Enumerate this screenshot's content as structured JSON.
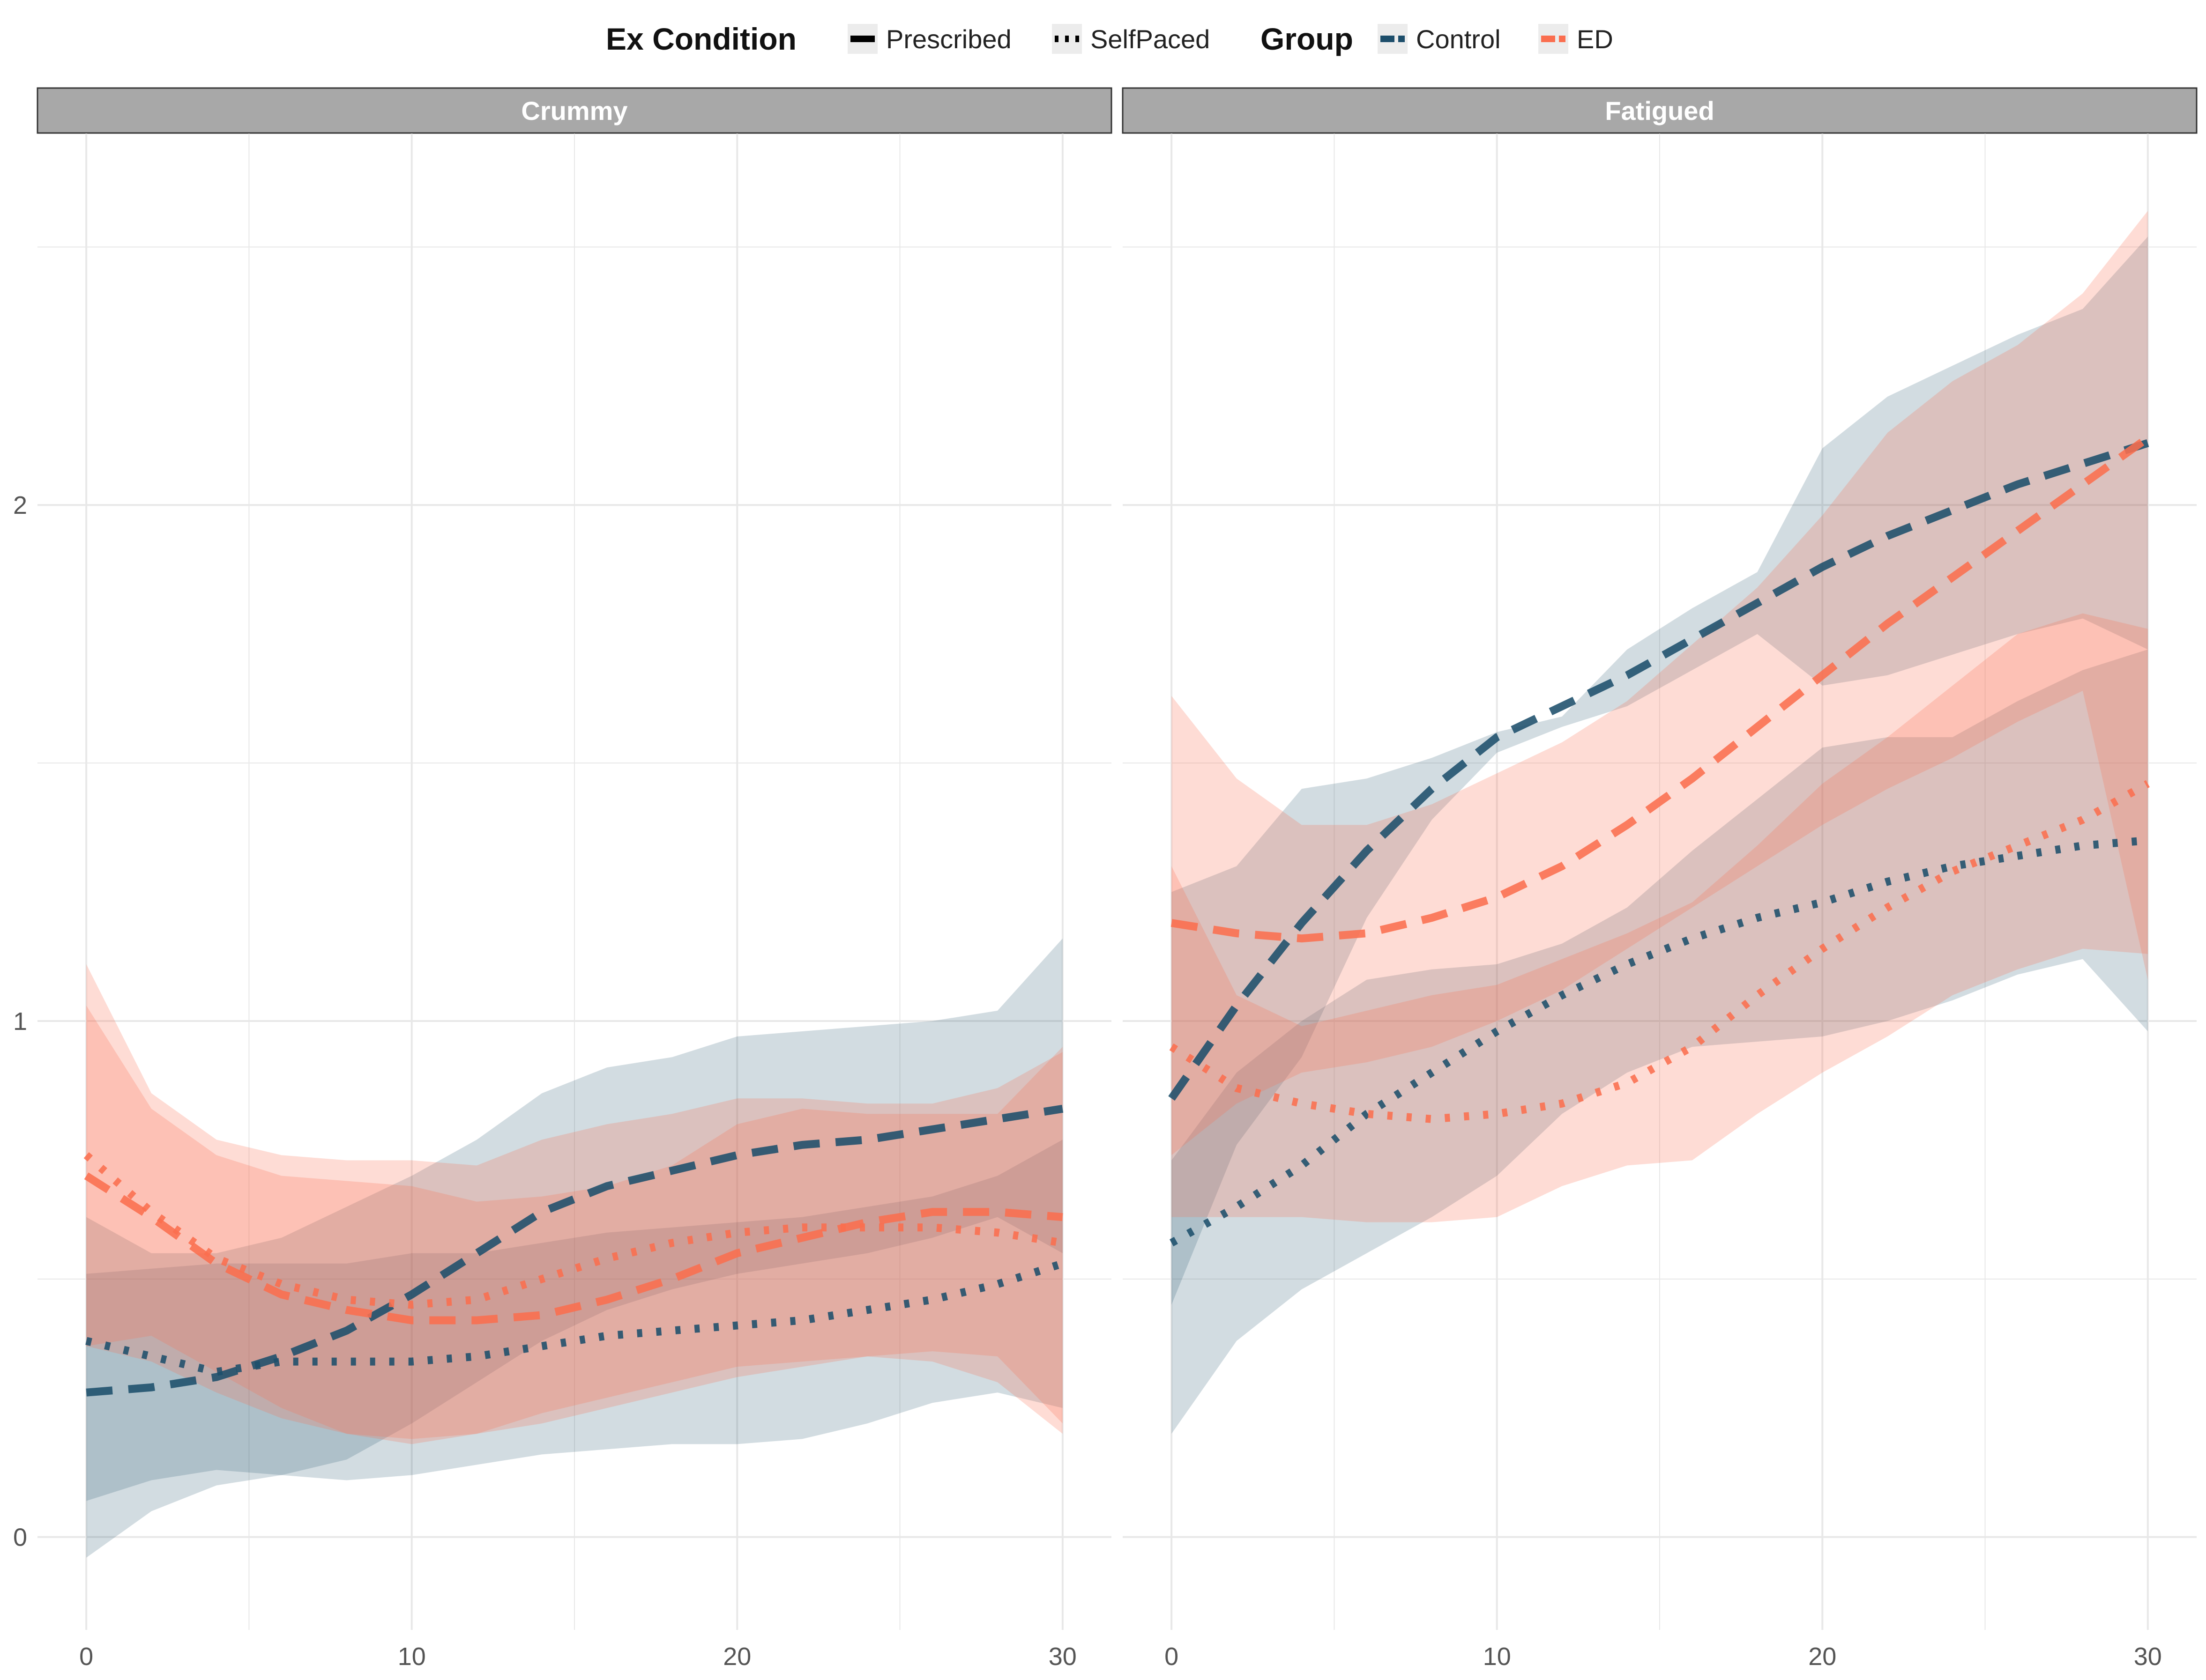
{
  "chart_data": {
    "type": "line",
    "legend": {
      "position": "top",
      "groups": [
        {
          "title": "Ex Condition",
          "key": "linetype",
          "entries": [
            {
              "label": "Prescribed",
              "dash": "solid"
            },
            {
              "label": "SelfPaced",
              "dash": "dotted"
            }
          ]
        },
        {
          "title": "Group",
          "key": "color",
          "entries": [
            {
              "label": "Control",
              "color": "#1d4e6b"
            },
            {
              "label": "ED",
              "color": "#fa6e4f"
            }
          ]
        }
      ]
    },
    "colors": {
      "Control": "#1d4e6b",
      "ED": "#fa6e4f",
      "strip": "#a8a8a8",
      "grid": "#e8e8e8"
    },
    "xlim": [
      -1.5,
      31.5
    ],
    "ylim": [
      -0.18,
      2.72
    ],
    "xticks": [
      0,
      10,
      20,
      30
    ],
    "yticks": [
      0,
      1,
      2
    ],
    "grid": true,
    "facets": [
      {
        "name": "Crummy",
        "series": [
          {
            "group": "Control",
            "condition": "Prescribed",
            "x": [
              0,
              2,
              4,
              6,
              8,
              10,
              12,
              14,
              16,
              18,
              20,
              22,
              24,
              26,
              28,
              30
            ],
            "y": [
              0.28,
              0.29,
              0.31,
              0.35,
              0.4,
              0.47,
              0.55,
              0.63,
              0.68,
              0.71,
              0.74,
              0.76,
              0.77,
              0.79,
              0.81,
              0.83
            ],
            "upper": [
              0.62,
              0.55,
              0.55,
              0.58,
              0.64,
              0.7,
              0.77,
              0.86,
              0.91,
              0.93,
              0.97,
              0.98,
              0.99,
              1.0,
              1.02,
              1.16
            ],
            "lower": [
              -0.04,
              0.05,
              0.1,
              0.12,
              0.15,
              0.22,
              0.3,
              0.38,
              0.44,
              0.48,
              0.51,
              0.53,
              0.55,
              0.58,
              0.62,
              0.55
            ]
          },
          {
            "group": "Control",
            "condition": "SelfPaced",
            "x": [
              0,
              2,
              4,
              6,
              8,
              10,
              12,
              14,
              16,
              18,
              20,
              22,
              24,
              26,
              28,
              30
            ],
            "y": [
              0.38,
              0.35,
              0.32,
              0.34,
              0.34,
              0.34,
              0.35,
              0.37,
              0.39,
              0.4,
              0.41,
              0.42,
              0.44,
              0.46,
              0.49,
              0.53
            ],
            "upper": [
              0.51,
              0.52,
              0.53,
              0.53,
              0.53,
              0.55,
              0.55,
              0.57,
              0.59,
              0.6,
              0.61,
              0.62,
              0.64,
              0.66,
              0.7,
              0.77
            ],
            "lower": [
              0.07,
              0.11,
              0.13,
              0.12,
              0.11,
              0.12,
              0.14,
              0.16,
              0.17,
              0.18,
              0.18,
              0.19,
              0.22,
              0.26,
              0.28,
              0.25
            ]
          },
          {
            "group": "ED",
            "condition": "Prescribed",
            "x": [
              0,
              2,
              4,
              6,
              8,
              10,
              12,
              14,
              16,
              18,
              20,
              22,
              24,
              26,
              28,
              30
            ],
            "y": [
              0.7,
              0.62,
              0.53,
              0.47,
              0.44,
              0.42,
              0.42,
              0.43,
              0.46,
              0.5,
              0.55,
              0.58,
              0.61,
              0.63,
              0.63,
              0.62
            ],
            "upper": [
              1.03,
              0.83,
              0.74,
              0.7,
              0.69,
              0.68,
              0.65,
              0.66,
              0.68,
              0.72,
              0.8,
              0.83,
              0.82,
              0.82,
              0.82,
              0.95
            ],
            "lower": [
              0.37,
              0.34,
              0.28,
              0.23,
              0.2,
              0.19,
              0.2,
              0.22,
              0.25,
              0.28,
              0.31,
              0.33,
              0.35,
              0.36,
              0.35,
              0.22
            ]
          },
          {
            "group": "ED",
            "condition": "SelfPaced",
            "x": [
              0,
              2,
              4,
              6,
              8,
              10,
              12,
              14,
              16,
              18,
              20,
              22,
              24,
              26,
              28,
              30
            ],
            "y": [
              0.74,
              0.63,
              0.54,
              0.49,
              0.46,
              0.45,
              0.46,
              0.5,
              0.54,
              0.57,
              0.59,
              0.6,
              0.6,
              0.6,
              0.59,
              0.57
            ],
            "upper": [
              1.11,
              0.86,
              0.77,
              0.74,
              0.73,
              0.73,
              0.72,
              0.77,
              0.8,
              0.82,
              0.85,
              0.85,
              0.84,
              0.84,
              0.87,
              0.94
            ],
            "lower": [
              0.37,
              0.39,
              0.32,
              0.25,
              0.2,
              0.18,
              0.2,
              0.24,
              0.27,
              0.3,
              0.33,
              0.34,
              0.35,
              0.34,
              0.3,
              0.2
            ]
          }
        ]
      },
      {
        "name": "Fatigued",
        "series": [
          {
            "group": "Control",
            "condition": "Prescribed",
            "x": [
              0,
              2,
              4,
              6,
              8,
              10,
              12,
              14,
              16,
              18,
              20,
              22,
              24,
              26,
              28,
              30
            ],
            "y": [
              0.85,
              1.03,
              1.19,
              1.33,
              1.45,
              1.55,
              1.61,
              1.67,
              1.74,
              1.81,
              1.88,
              1.94,
              1.99,
              2.04,
              2.08,
              2.12
            ],
            "upper": [
              1.25,
              1.3,
              1.45,
              1.47,
              1.51,
              1.56,
              1.59,
              1.72,
              1.8,
              1.87,
              2.11,
              2.21,
              2.27,
              2.33,
              2.38,
              2.52
            ],
            "lower": [
              0.45,
              0.76,
              0.93,
              1.2,
              1.39,
              1.52,
              1.57,
              1.61,
              1.68,
              1.75,
              1.65,
              1.67,
              1.71,
              1.75,
              1.78,
              1.72
            ]
          },
          {
            "group": "Control",
            "condition": "SelfPaced",
            "x": [
              0,
              2,
              4,
              6,
              8,
              10,
              12,
              14,
              16,
              18,
              20,
              22,
              24,
              26,
              28,
              30
            ],
            "y": [
              0.57,
              0.64,
              0.72,
              0.82,
              0.9,
              0.98,
              1.05,
              1.11,
              1.16,
              1.2,
              1.23,
              1.27,
              1.3,
              1.32,
              1.34,
              1.35
            ],
            "upper": [
              0.73,
              0.9,
              1.0,
              1.08,
              1.1,
              1.11,
              1.15,
              1.22,
              1.33,
              1.43,
              1.53,
              1.55,
              1.55,
              1.62,
              1.68,
              1.72
            ],
            "lower": [
              0.2,
              0.38,
              0.48,
              0.55,
              0.62,
              0.7,
              0.82,
              0.9,
              0.95,
              0.96,
              0.97,
              1.0,
              1.04,
              1.09,
              1.12,
              0.98
            ]
          },
          {
            "group": "ED",
            "condition": "Prescribed",
            "x": [
              0,
              2,
              4,
              6,
              8,
              10,
              12,
              14,
              16,
              18,
              20,
              22,
              24,
              26,
              28,
              30
            ],
            "y": [
              1.19,
              1.17,
              1.16,
              1.17,
              1.2,
              1.24,
              1.3,
              1.38,
              1.47,
              1.57,
              1.67,
              1.77,
              1.86,
              1.95,
              2.04,
              2.13
            ],
            "upper": [
              1.63,
              1.47,
              1.38,
              1.38,
              1.42,
              1.48,
              1.54,
              1.62,
              1.73,
              1.84,
              1.98,
              2.14,
              2.24,
              2.31,
              2.41,
              2.57
            ],
            "lower": [
              0.74,
              0.84,
              0.9,
              0.92,
              0.95,
              1.0,
              1.06,
              1.14,
              1.22,
              1.3,
              1.38,
              1.45,
              1.51,
              1.58,
              1.64,
              1.08
            ]
          },
          {
            "group": "ED",
            "condition": "SelfPaced",
            "x": [
              0,
              2,
              4,
              6,
              8,
              10,
              12,
              14,
              16,
              18,
              20,
              22,
              24,
              26,
              28,
              30
            ],
            "y": [
              0.95,
              0.87,
              0.84,
              0.82,
              0.81,
              0.82,
              0.84,
              0.88,
              0.95,
              1.05,
              1.14,
              1.22,
              1.29,
              1.34,
              1.39,
              1.46
            ],
            "upper": [
              1.3,
              1.05,
              0.99,
              1.02,
              1.05,
              1.07,
              1.12,
              1.17,
              1.23,
              1.34,
              1.46,
              1.55,
              1.65,
              1.75,
              1.79,
              1.76
            ],
            "lower": [
              0.62,
              0.62,
              0.62,
              0.61,
              0.61,
              0.62,
              0.68,
              0.72,
              0.73,
              0.82,
              0.9,
              0.97,
              1.05,
              1.1,
              1.14,
              1.13
            ]
          }
        ]
      }
    ]
  }
}
